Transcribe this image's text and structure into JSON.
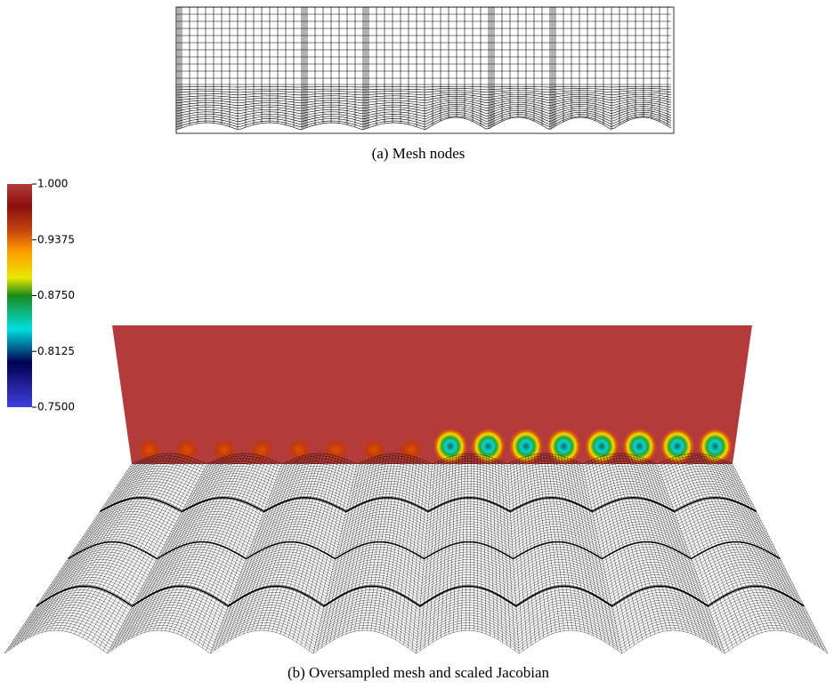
{
  "figure_a": {
    "caption": "(a) Mesh nodes"
  },
  "figure_b": {
    "caption": "(b) Oversampled mesh and scaled Jacobian",
    "colorbar": {
      "ticks": [
        {
          "value": 1,
          "label": "1.000"
        },
        0.9375,
        {
          "value": 0.875,
          "label": "0.8750"
        },
        0.8125,
        {
          "value": 0.75,
          "label": "0.7500"
        }
      ]
    }
  }
}
